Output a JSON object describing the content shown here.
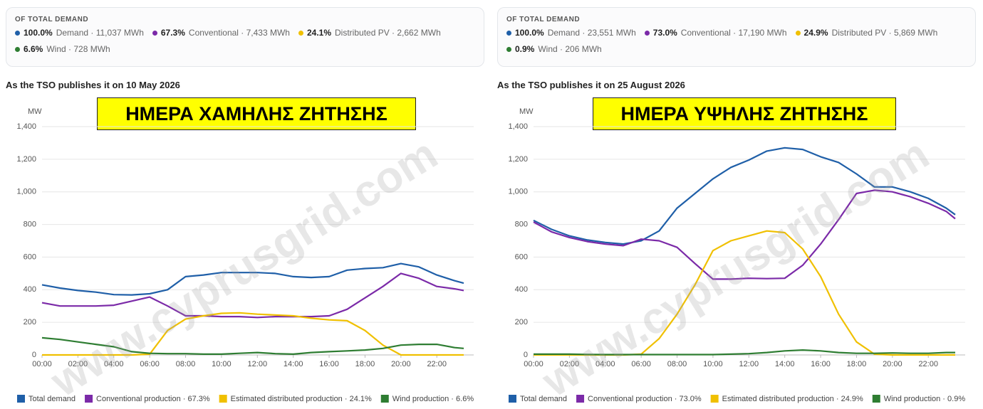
{
  "chart_data": [
    {
      "type": "line",
      "summary_title": "OF TOTAL DEMAND",
      "summary": [
        {
          "percent": "100.0%",
          "label": "Demand · 11,037 MWh"
        },
        {
          "percent": "67.3%",
          "label": "Conventional · 7,433 MWh"
        },
        {
          "percent": "24.1%",
          "label": "Distributed PV · 2,662 MWh"
        },
        {
          "percent": "6.6%",
          "label": "Wind · 728 MWh"
        }
      ],
      "caption": "As the TSO publishes it on 10 May 2026",
      "banner": "ΗΜΕΡΑ ΧΑΜΗΛΗΣ ΖΗΤΗΣΗΣ",
      "watermark": "www.cyprusgrid.com",
      "y_unit": "MW",
      "grid": true,
      "x": [
        0,
        1,
        2,
        3,
        4,
        5,
        6,
        7,
        8,
        9,
        10,
        11,
        12,
        13,
        14,
        15,
        16,
        17,
        18,
        19,
        20,
        21,
        22,
        23,
        23.5
      ],
      "xlim": [
        0,
        23.5
      ],
      "xticks": [
        {
          "value": 0,
          "label": "00:00"
        },
        {
          "value": 2,
          "label": "02:00"
        },
        {
          "value": 4,
          "label": "04:00"
        },
        {
          "value": 6,
          "label": "06:00"
        },
        {
          "value": 8,
          "label": "08:00"
        },
        {
          "value": 10,
          "label": "10:00"
        },
        {
          "value": 12,
          "label": "12:00"
        },
        {
          "value": 14,
          "label": "14:00"
        },
        {
          "value": 16,
          "label": "16:00"
        },
        {
          "value": 18,
          "label": "18:00"
        },
        {
          "value": 20,
          "label": "20:00"
        },
        {
          "value": 22,
          "label": "22:00"
        }
      ],
      "ylim": [
        0,
        1400
      ],
      "yticks": [
        0,
        200,
        400,
        600,
        800,
        {
          "value": 1000,
          "label": "1,000"
        },
        {
          "value": 1200,
          "label": "1,200"
        },
        {
          "value": 1400,
          "label": "1,400"
        }
      ],
      "series": [
        {
          "name": "Total demand",
          "color": "#1f5fa8",
          "values": [
            430,
            410,
            395,
            385,
            370,
            368,
            375,
            400,
            480,
            490,
            505,
            505,
            505,
            500,
            480,
            475,
            480,
            520,
            530,
            535,
            560,
            540,
            490,
            455,
            440
          ]
        },
        {
          "name": "Conventional production · 67.3%",
          "color": "#7b2aa8",
          "values": [
            320,
            300,
            300,
            300,
            305,
            330,
            355,
            300,
            240,
            240,
            235,
            235,
            230,
            235,
            235,
            235,
            240,
            280,
            350,
            420,
            500,
            470,
            420,
            405,
            395
          ]
        },
        {
          "name": "Estimated distributed production · 24.1%",
          "color": "#f0c000",
          "values": [
            0,
            0,
            0,
            0,
            0,
            0,
            5,
            150,
            220,
            240,
            255,
            258,
            250,
            245,
            240,
            225,
            215,
            210,
            150,
            60,
            0,
            0,
            0,
            0,
            0
          ]
        },
        {
          "name": "Wind production · 6.6%",
          "color": "#2e7d32",
          "values": [
            105,
            95,
            80,
            65,
            50,
            20,
            10,
            8,
            8,
            5,
            5,
            10,
            15,
            8,
            5,
            15,
            20,
            25,
            30,
            40,
            60,
            65,
            65,
            45,
            40
          ]
        }
      ]
    },
    {
      "type": "line",
      "summary_title": "OF TOTAL DEMAND",
      "summary": [
        {
          "percent": "100.0%",
          "label": "Demand · 23,551 MWh"
        },
        {
          "percent": "73.0%",
          "label": "Conventional · 17,190 MWh"
        },
        {
          "percent": "24.9%",
          "label": "Distributed PV · 5,869 MWh"
        },
        {
          "percent": "0.9%",
          "label": "Wind · 206 MWh"
        }
      ],
      "caption": "As the TSO publishes it on 25 August 2026",
      "banner": "ΗΜΕΡΑ ΥΨΗΛΗΣ ΖΗΤΗΣΗΣ",
      "watermark": "www.cyprusgrid.com",
      "y_unit": "MW",
      "grid": true,
      "x": [
        0,
        1,
        2,
        3,
        4,
        5,
        6,
        7,
        8,
        9,
        10,
        11,
        12,
        13,
        14,
        15,
        16,
        17,
        18,
        19,
        20,
        21,
        22,
        23,
        23.5
      ],
      "xlim": [
        0,
        23.5
      ],
      "xticks": [
        {
          "value": 0,
          "label": "00:00"
        },
        {
          "value": 2,
          "label": "02:00"
        },
        {
          "value": 4,
          "label": "04:00"
        },
        {
          "value": 6,
          "label": "06:00"
        },
        {
          "value": 8,
          "label": "08:00"
        },
        {
          "value": 10,
          "label": "10:00"
        },
        {
          "value": 12,
          "label": "12:00"
        },
        {
          "value": 14,
          "label": "14:00"
        },
        {
          "value": 16,
          "label": "16:00"
        },
        {
          "value": 18,
          "label": "18:00"
        },
        {
          "value": 20,
          "label": "20:00"
        },
        {
          "value": 22,
          "label": "22:00"
        }
      ],
      "ylim": [
        0,
        1400
      ],
      "yticks": [
        0,
        200,
        400,
        600,
        800,
        {
          "value": 1000,
          "label": "1,000"
        },
        {
          "value": 1200,
          "label": "1,200"
        },
        {
          "value": 1400,
          "label": "1,400"
        }
      ],
      "series": [
        {
          "name": "Total demand",
          "color": "#1f5fa8",
          "values": [
            825,
            770,
            730,
            705,
            690,
            680,
            700,
            760,
            900,
            990,
            1080,
            1150,
            1195,
            1250,
            1270,
            1260,
            1215,
            1180,
            1110,
            1030,
            1030,
            1000,
            960,
            900,
            860
          ]
        },
        {
          "name": "Conventional production · 73.0%",
          "color": "#7b2aa8",
          "values": [
            815,
            755,
            720,
            695,
            680,
            670,
            710,
            700,
            660,
            560,
            465,
            465,
            470,
            468,
            470,
            550,
            680,
            830,
            990,
            1010,
            1000,
            970,
            930,
            880,
            835
          ]
        },
        {
          "name": "Estimated distributed production · 24.9%",
          "color": "#f0c000",
          "values": [
            0,
            0,
            0,
            0,
            0,
            0,
            5,
            100,
            250,
            430,
            640,
            700,
            730,
            760,
            750,
            650,
            480,
            250,
            80,
            5,
            0,
            0,
            0,
            0,
            0
          ]
        },
        {
          "name": "Wind production · 0.9%",
          "color": "#2e7d32",
          "values": [
            5,
            5,
            5,
            3,
            2,
            2,
            2,
            2,
            2,
            2,
            2,
            5,
            8,
            15,
            25,
            30,
            25,
            15,
            10,
            10,
            12,
            10,
            10,
            15,
            15
          ]
        }
      ]
    }
  ]
}
